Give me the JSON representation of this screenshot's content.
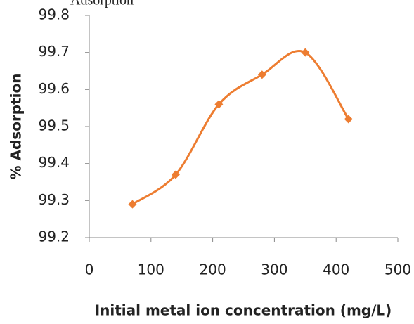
{
  "chart_data": {
    "type": "line",
    "title": "Adsorption",
    "x_label": "Initial metal ion concentration (mg/L)",
    "y_label": "% Adsorption",
    "x": [
      70,
      140,
      210,
      280,
      350,
      420
    ],
    "series": [
      {
        "name": "% Adsorption",
        "color": "#ed7d31",
        "values": [
          99.29,
          99.37,
          99.56,
          99.64,
          99.7,
          99.52
        ]
      }
    ],
    "xlim": [
      0,
      500
    ],
    "xticks": [
      0,
      100,
      200,
      300,
      400,
      500
    ],
    "ylim": [
      99.2,
      99.8
    ],
    "yticks": [
      99.2,
      99.3,
      99.4,
      99.5,
      99.6,
      99.7,
      99.8
    ],
    "grid": false
  }
}
